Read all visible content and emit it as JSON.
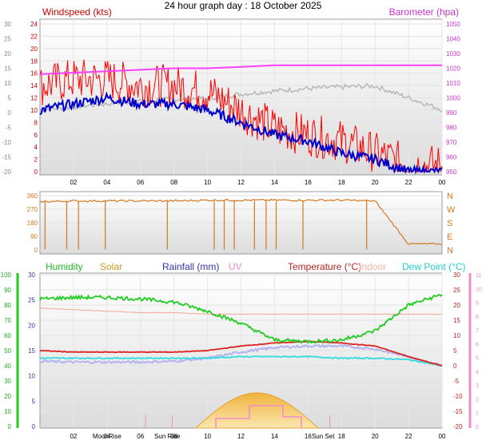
{
  "title": "24 hour graph day : 18 October 2025",
  "panel1": {
    "left_label": "Windspeed (kts)",
    "right_label": "Barometer (hpa)",
    "outer_left_ticks": [
      "30",
      "25",
      "20",
      "15",
      "10",
      "5",
      "0",
      "-5",
      "-10",
      "-15",
      "-20"
    ],
    "wind_ticks": [
      "24",
      "22",
      "20",
      "18",
      "16",
      "14",
      "12",
      "10",
      "8",
      "6",
      "4",
      "2",
      "0"
    ],
    "baro_ticks": [
      "1050",
      "1040",
      "1030",
      "1020",
      "1010",
      "1000",
      "990",
      "980",
      "970",
      "960",
      "950"
    ],
    "x_ticks": [
      "02",
      "04",
      "06",
      "08",
      "10",
      "12",
      "14",
      "16",
      "18",
      "20",
      "22",
      "00"
    ]
  },
  "panel2": {
    "left_ticks": [
      "360",
      "270",
      "180",
      "90",
      "0"
    ],
    "right_ticks": [
      "N",
      "W",
      "S",
      "E",
      "N"
    ]
  },
  "panel3": {
    "labels": {
      "humidity": "Humidity",
      "solar": "Solar",
      "rainfall": "Rainfall (mm)",
      "uv": "UV",
      "temperature": "Temperature (°C)",
      "indoor": "Indoor",
      "dewpoint": "Dew Point (°C)"
    },
    "humidity_ticks": [
      "100",
      "90",
      "80",
      "70",
      "60",
      "50",
      "40",
      "30",
      "20",
      "10",
      "0"
    ],
    "rain_ticks": [
      "30",
      "25",
      "20",
      "15",
      "10",
      "5",
      "0"
    ],
    "temp_ticks": [
      "30",
      "25",
      "20",
      "15",
      "10",
      "5",
      "0",
      "-5",
      "-10",
      "-15",
      "-20"
    ],
    "uv_ticks": [
      "11",
      "10",
      "9",
      "8",
      "7",
      "6",
      "5",
      "4",
      "3",
      "2",
      "1",
      "0"
    ],
    "x_ticks": [
      "02",
      "04",
      "06",
      "08",
      "10",
      "12",
      "14",
      "16",
      "18",
      "20",
      "22",
      "00"
    ],
    "events": {
      "moonrise": "MoonRise",
      "sunrise": "Sun Rise",
      "sunset": "Sun Set"
    }
  },
  "colors": {
    "wind_gust": "#ff0000",
    "wind_avg": "#0000cc",
    "barometer": "#ff40ff",
    "grey_line": "#b4b4b4",
    "wind_dir": "#d2781e",
    "humidity": "#22cc22",
    "temperature": "#dd2222",
    "dewpoint": "#33dddd",
    "indoor": "#f0b4a0",
    "lavender": "#b4b4f0",
    "solar": "#f0b23c",
    "uv": "#f08cc8"
  },
  "chart_data": [
    {
      "type": "line",
      "title": "24 hour graph day : 18 October 2025",
      "xlabel": "",
      "ylabel": "Windspeed (kts)",
      "x": [
        "00",
        "02",
        "04",
        "06",
        "08",
        "10",
        "12",
        "14",
        "16",
        "18",
        "20",
        "22",
        "00"
      ],
      "ylim": [
        0,
        25
      ],
      "series": [
        {
          "name": "Windspeed (kts)",
          "values": [
            14,
            15,
            15,
            14,
            14,
            13,
            10,
            7,
            6,
            5,
            3,
            1,
            1
          ]
        },
        {
          "name": "",
          "values": [
            10,
            11,
            12,
            11,
            11,
            10,
            8,
            6,
            5,
            3,
            2,
            0,
            0
          ]
        }
      ],
      "y2label": "Barometer (hpa)",
      "y2lim": [
        950,
        1050
      ],
      "barometer": {
        "name": "Barometer (hpa)",
        "values": [
          1016,
          1017,
          1018,
          1019,
          1020,
          1020,
          1021,
          1022,
          1022,
          1022,
          1022,
          1022,
          1022
        ]
      }
    },
    {
      "type": "line",
      "ylim": [
        0,
        360
      ],
      "x": [
        "00",
        "02",
        "04",
        "06",
        "08",
        "10",
        "12",
        "14",
        "16",
        "18",
        "20",
        "22",
        "00"
      ],
      "series": [
        {
          "name": "",
          "values": [
            320,
            325,
            325,
            325,
            325,
            330,
            330,
            330,
            330,
            330,
            325,
            40,
            40
          ]
        }
      ]
    },
    {
      "type": "line",
      "x": [
        "00",
        "02",
        "04",
        "06",
        "08",
        "10",
        "12",
        "14",
        "16",
        "18",
        "20",
        "22",
        "00"
      ],
      "series": [
        {
          "name": "Humidity",
          "values": [
            84,
            85,
            85,
            84,
            82,
            76,
            68,
            57,
            56,
            57,
            63,
            80,
            87
          ]
        },
        {
          "name": "Temperature (°C)",
          "values": [
            5,
            4.5,
            4.5,
            4.5,
            4.5,
            5,
            6.5,
            7.5,
            8,
            7.5,
            6.5,
            3,
            0
          ]
        },
        {
          "name": "Dew Point (°C)",
          "values": [
            2.5,
            2.5,
            2.5,
            2.5,
            2.5,
            2.5,
            3,
            3,
            3,
            2.5,
            2.5,
            2,
            0
          ]
        },
        {
          "name": "Indoor",
          "values": [
            19,
            18.5,
            18,
            17.5,
            17.5,
            17,
            17,
            17,
            17,
            17,
            17,
            17,
            17
          ]
        },
        {
          "name": "Solar",
          "values": [
            0,
            0,
            0,
            0,
            0,
            0.5,
            4,
            5.5,
            3,
            0,
            0,
            0,
            0
          ]
        }
      ]
    }
  ]
}
